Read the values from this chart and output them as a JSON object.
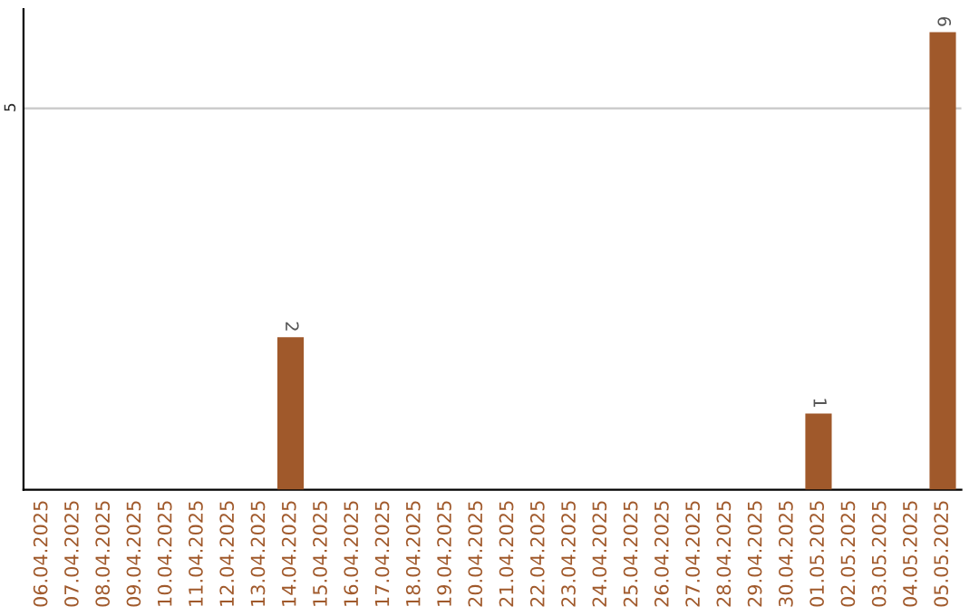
{
  "chart_data": {
    "type": "bar",
    "categories": [
      "06.04.2025",
      "07.04.2025",
      "08.04.2025",
      "09.04.2025",
      "10.04.2025",
      "11.04.2025",
      "12.04.2025",
      "13.04.2025",
      "14.04.2025",
      "15.04.2025",
      "16.04.2025",
      "17.04.2025",
      "18.04.2025",
      "19.04.2025",
      "20.04.2025",
      "21.04.2025",
      "22.04.2025",
      "23.04.2025",
      "24.04.2025",
      "25.04.2025",
      "26.04.2025",
      "27.04.2025",
      "28.04.2025",
      "29.04.2025",
      "30.04.2025",
      "01.05.2025",
      "02.05.2025",
      "03.05.2025",
      "04.05.2025",
      "05.05.2025"
    ],
    "values": [
      0,
      0,
      0,
      0,
      0,
      0,
      0,
      0,
      2,
      0,
      0,
      0,
      0,
      0,
      0,
      0,
      0,
      0,
      0,
      0,
      0,
      0,
      0,
      0,
      0,
      1,
      0,
      0,
      0,
      6
    ],
    "value_labels": [
      null,
      null,
      null,
      null,
      null,
      null,
      null,
      null,
      "2",
      null,
      null,
      null,
      null,
      null,
      null,
      null,
      null,
      null,
      null,
      null,
      null,
      null,
      null,
      null,
      null,
      "1",
      null,
      null,
      null,
      "6"
    ],
    "color": "#a0592b",
    "ylim": [
      0,
      6.3
    ],
    "yticks": [
      5
    ],
    "grid": "y"
  }
}
